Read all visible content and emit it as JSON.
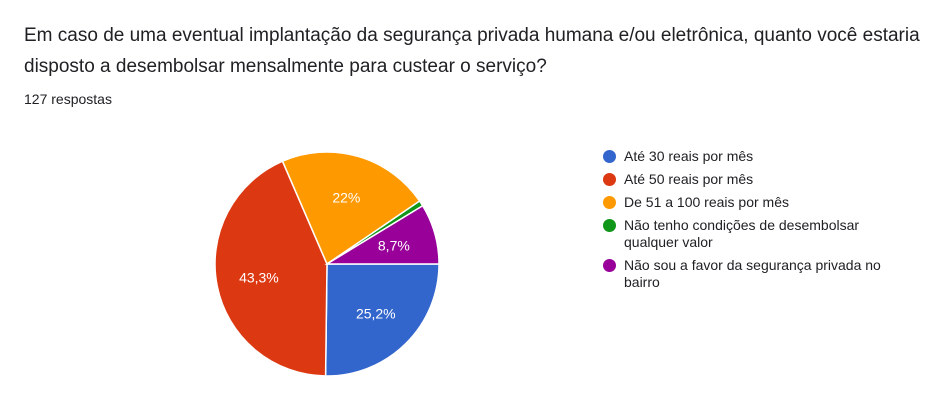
{
  "question": "Em caso de uma eventual implantação da segurança privada humana e/ou eletrônica, quanto você estaria disposto a desembolsar mensalmente para custear o serviço?",
  "responses": "127 respostas",
  "chart_data": {
    "type": "pie",
    "title": "Em caso de uma eventual implantação da segurança privada humana e/ou eletrônica, quanto você estaria disposto a desembolsar mensalmente para custear o serviço?",
    "legend_position": "right",
    "slices": [
      {
        "label": "Até 30 reais por mês",
        "value": 25.2,
        "display": "25,2%",
        "color": "#3366cc"
      },
      {
        "label": "Até 50 reais por mês",
        "value": 43.3,
        "display": "43,3%",
        "color": "#dc3912"
      },
      {
        "label": "De 51 a 100 reais por mês",
        "value": 22.0,
        "display": "22%",
        "color": "#ff9900"
      },
      {
        "label": "Não tenho condições de desembolsar qualquer valor",
        "value": 0.8,
        "display": "",
        "color": "#109618"
      },
      {
        "label": "Não sou a favor da segurança privada no bairro",
        "value": 8.7,
        "display": "8,7%",
        "color": "#990099"
      }
    ]
  }
}
